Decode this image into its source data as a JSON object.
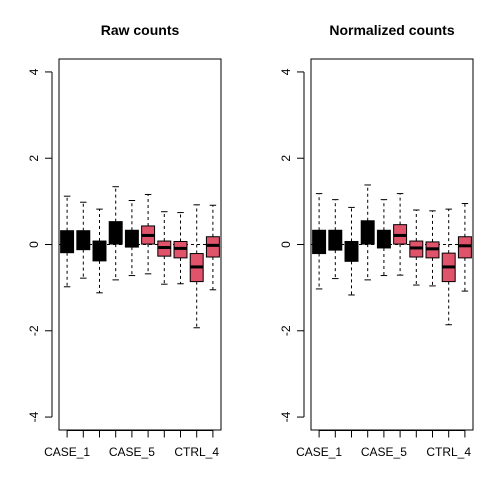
{
  "chart_data": [
    {
      "type": "boxplot",
      "title": "Raw counts",
      "xlabel": "",
      "ylabel": "",
      "ylim": [
        -4.3,
        4.3
      ],
      "yticks": [
        "-4",
        "-2",
        "0",
        "2",
        "4"
      ],
      "ytick_values": [
        -4,
        -2,
        0,
        2,
        4
      ],
      "xtick_labels": [
        "CASE_1",
        "CASE_5",
        "CTRL_4"
      ],
      "xtick_positions": [
        1,
        5,
        9
      ],
      "hline": 0,
      "colors": {
        "case": "#000000",
        "ctrl": "#DF536B"
      },
      "boxes": [
        {
          "group": "case",
          "min": -0.98,
          "q1": -0.19,
          "median": 0.02,
          "q3": 0.32,
          "max": 1.12
        },
        {
          "group": "case",
          "min": -0.78,
          "q1": -0.12,
          "median": 0.08,
          "q3": 0.32,
          "max": 0.98
        },
        {
          "group": "case",
          "min": -1.12,
          "q1": -0.38,
          "median": -0.13,
          "q3": 0.08,
          "max": 0.82
        },
        {
          "group": "case",
          "min": -0.82,
          "q1": 0.01,
          "median": 0.21,
          "q3": 0.53,
          "max": 1.34
        },
        {
          "group": "case",
          "min": -0.72,
          "q1": -0.06,
          "median": 0.11,
          "q3": 0.33,
          "max": 1.02
        },
        {
          "group": "ctrl",
          "min": -0.68,
          "q1": 0.01,
          "median": 0.21,
          "q3": 0.43,
          "max": 1.16
        },
        {
          "group": "ctrl",
          "min": -0.92,
          "q1": -0.27,
          "median": -0.07,
          "q3": 0.08,
          "max": 0.76
        },
        {
          "group": "ctrl",
          "min": -0.91,
          "q1": -0.31,
          "median": -0.09,
          "q3": 0.07,
          "max": 0.74
        },
        {
          "group": "ctrl",
          "min": -1.93,
          "q1": -0.86,
          "median": -0.52,
          "q3": -0.21,
          "max": 0.92
        },
        {
          "group": "ctrl",
          "min": -1.05,
          "q1": -0.29,
          "median": -0.02,
          "q3": 0.18,
          "max": 0.91
        }
      ]
    },
    {
      "type": "boxplot",
      "title": "Normalized counts",
      "xlabel": "",
      "ylabel": "",
      "ylim": [
        -4.3,
        4.3
      ],
      "yticks": [
        "-4",
        "-2",
        "0",
        "2",
        "4"
      ],
      "ytick_values": [
        -4,
        -2,
        0,
        2,
        4
      ],
      "xtick_labels": [
        "CASE_1",
        "CASE_5",
        "CTRL_4"
      ],
      "xtick_positions": [
        1,
        5,
        9
      ],
      "hline": 0,
      "colors": {
        "case": "#000000",
        "ctrl": "#DF536B"
      },
      "boxes": [
        {
          "group": "case",
          "min": -1.03,
          "q1": -0.21,
          "median": 0.01,
          "q3": 0.33,
          "max": 1.18
        },
        {
          "group": "case",
          "min": -0.79,
          "q1": -0.13,
          "median": 0.07,
          "q3": 0.33,
          "max": 1.04
        },
        {
          "group": "case",
          "min": -1.17,
          "q1": -0.39,
          "median": -0.14,
          "q3": 0.07,
          "max": 0.86
        },
        {
          "group": "case",
          "min": -0.82,
          "q1": 0.01,
          "median": 0.21,
          "q3": 0.55,
          "max": 1.38
        },
        {
          "group": "case",
          "min": -0.72,
          "q1": -0.08,
          "median": 0.11,
          "q3": 0.33,
          "max": 1.04
        },
        {
          "group": "ctrl",
          "min": -0.71,
          "q1": 0.01,
          "median": 0.21,
          "q3": 0.46,
          "max": 1.18
        },
        {
          "group": "ctrl",
          "min": -0.94,
          "q1": -0.29,
          "median": -0.08,
          "q3": 0.08,
          "max": 0.8
        },
        {
          "group": "ctrl",
          "min": -0.96,
          "q1": -0.31,
          "median": -0.1,
          "q3": 0.06,
          "max": 0.78
        },
        {
          "group": "ctrl",
          "min": -1.86,
          "q1": -0.86,
          "median": -0.52,
          "q3": -0.2,
          "max": 0.82
        },
        {
          "group": "ctrl",
          "min": -1.08,
          "q1": -0.31,
          "median": -0.03,
          "q3": 0.18,
          "max": 0.95
        }
      ]
    }
  ]
}
